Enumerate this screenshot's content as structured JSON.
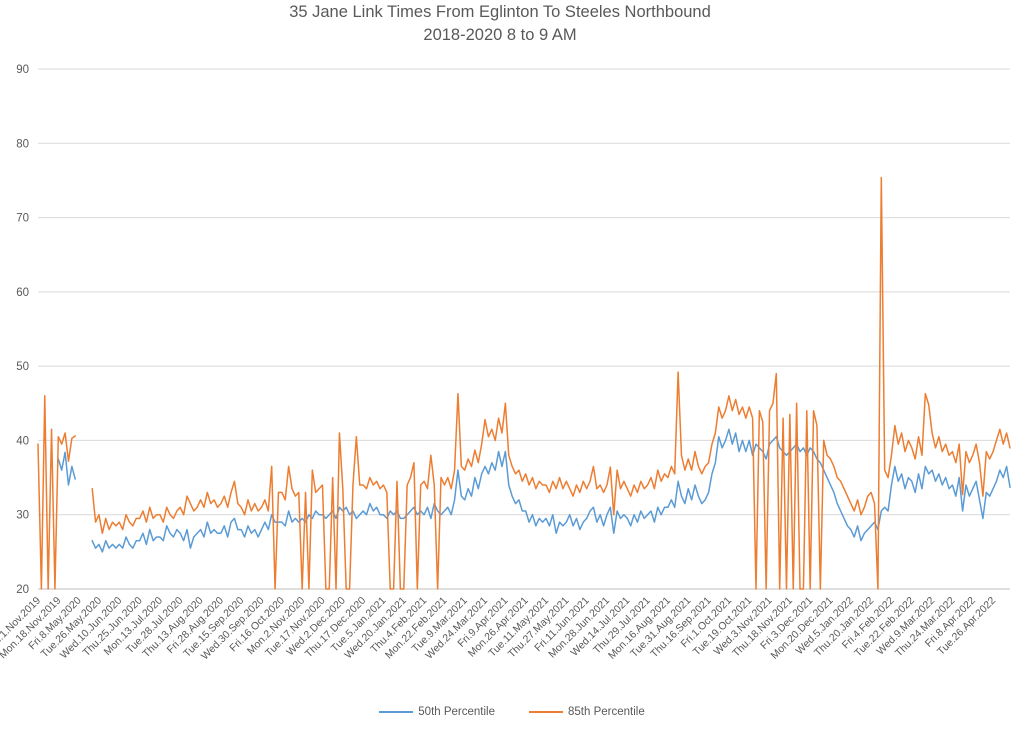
{
  "chart_data": {
    "type": "line",
    "title": "35 Jane Link Times From Eglinton To Steeles Northbound",
    "subtitle": "2018-2020 8 to 9 AM",
    "ylim": [
      20,
      90
    ],
    "y_ticks": [
      20,
      30,
      40,
      50,
      60,
      70,
      80,
      90
    ],
    "grid": "horizontal",
    "legend_position": "bottom",
    "label_every": 6,
    "x_tick_labels": [
      "Fri.1.Nov.2019",
      "Mon.18.Nov.2019",
      "Fri.8.May.2020",
      "Tue.26.May.2020",
      "Wed.10.Jun.2020",
      "Thu.25.Jun.2020",
      "Mon.13.Jul.2020",
      "Tue.28.Jul.2020",
      "Thu.13.Aug.2020",
      "Fri.28.Aug.2020",
      "Tue.15.Sep.2020",
      "Wed.30.Sep.2020",
      "Fri.16.Oct.2020",
      "Mon.2.Nov.2020",
      "Tue.17.Nov.2020",
      "Wed.2.Dec.2020",
      "Thu.17.Dec.2020",
      "Tue.5.Jan.2021",
      "Wed.20.Jan.2021",
      "Thu.4.Feb.2021",
      "Mon.22.Feb.2021",
      "Tue.9.Mar.2021",
      "Wed.24.Mar.2021",
      "Fri.9.Apr.2021",
      "Mon.26.Apr.2021",
      "Tue.11.May.2021",
      "Thu.27.May.2021",
      "Fri.11.Jun.2021",
      "Mon.28.Jun.2021",
      "Wed.14.Jul.2021",
      "Thu.29.Jul.2021",
      "Mon.16.Aug.2021",
      "Tue.31.Aug.2021",
      "Thu.16.Sep.2021",
      "Fri.1.Oct.2021",
      "Tue.19.Oct.2021",
      "Wed.3.Nov.2021",
      "Thu.18.Nov.2021",
      "Fri.3.Dec.2021",
      "Mon.20.Dec.2021",
      "Wed.5.Jan.2022",
      "Thu.20.Jan.2022",
      "Fri.4.Feb.2022",
      "Tue.22.Feb.2022",
      "Wed.9.Mar.2022",
      "Thu.24.Mar.2022",
      "Fri.8.Apr.2022",
      "Tue.26.Apr.2022"
    ],
    "series": [
      {
        "name": "50th Percentile",
        "color": "#5B9BD5",
        "values": [
          null,
          null,
          null,
          null,
          null,
          null,
          37.5,
          36,
          38.4,
          34,
          36.5,
          34.8,
          null,
          null,
          null,
          null,
          26.5,
          25.5,
          26,
          25,
          26.5,
          25.5,
          26,
          25.5,
          26,
          25.5,
          27,
          26,
          25.5,
          26.5,
          26.5,
          27.5,
          26,
          28,
          26.5,
          27,
          27,
          26.5,
          28.5,
          27.5,
          27,
          28,
          27.5,
          26.5,
          28,
          25.5,
          27,
          27.5,
          28,
          27,
          29,
          27.5,
          28,
          27.5,
          27.5,
          28.5,
          27,
          29,
          29.5,
          28,
          28,
          27,
          28.5,
          27.5,
          28,
          27,
          28,
          29,
          28,
          30,
          29,
          29,
          29,
          28.5,
          30.5,
          29,
          29.5,
          29,
          29.5,
          29,
          30,
          29.5,
          30.5,
          30,
          30,
          29.5,
          30,
          30.5,
          29.5,
          31,
          30.5,
          31,
          30,
          30.5,
          29.5,
          30,
          30.5,
          30,
          31.5,
          30.5,
          31,
          30,
          30,
          29.5,
          30.5,
          30,
          30.5,
          29.5,
          29.5,
          30,
          30.5,
          31,
          30,
          30.5,
          30,
          31,
          29.5,
          31.5,
          30.5,
          30,
          30.5,
          31,
          30,
          32,
          36,
          32.5,
          32,
          33.5,
          32.5,
          35,
          33.5,
          35.5,
          36.5,
          35.5,
          37,
          36,
          38.5,
          36.5,
          38.5,
          34,
          32.5,
          31.5,
          32,
          30.5,
          30.5,
          29,
          30,
          28.5,
          29.5,
          29,
          29.5,
          28.5,
          30,
          27.5,
          29,
          28.5,
          29,
          30,
          28.5,
          29.5,
          28,
          29,
          29.5,
          30.5,
          31,
          29,
          30,
          28.5,
          30,
          31,
          27.5,
          30.5,
          29.5,
          30,
          29.5,
          28.5,
          30,
          29,
          30.5,
          29.5,
          30,
          30.5,
          29,
          31,
          30,
          31,
          31,
          32,
          31,
          34.5,
          32.5,
          31.5,
          33.5,
          32,
          34,
          32.5,
          31.5,
          32,
          33,
          35.5,
          37,
          40.5,
          39,
          40,
          41.5,
          39.5,
          41,
          38.5,
          40,
          38.5,
          40,
          38,
          39.5,
          39,
          38.5,
          37.5,
          39.5,
          40,
          40.5,
          39,
          38.5,
          38,
          38.5,
          39,
          39.5,
          38.5,
          39,
          38,
          39,
          38.5,
          37.5,
          37,
          36,
          35,
          34,
          33,
          31.5,
          30.5,
          29.5,
          28.5,
          28,
          27,
          28.5,
          26.5,
          27.5,
          28,
          28.5,
          29,
          28,
          30.5,
          31,
          30.5,
          34,
          36.5,
          34.5,
          35.5,
          33.5,
          35,
          34.5,
          33,
          35.5,
          33.5,
          36.5,
          35.5,
          36,
          34.5,
          35.5,
          34,
          35,
          33.5,
          34,
          32.5,
          35,
          30.5,
          34,
          32.5,
          33.5,
          34.5,
          32,
          29.5,
          33,
          32.5,
          33.5,
          34.5,
          36,
          35,
          36.5,
          33.7
        ]
      },
      {
        "name": "85th Percentile",
        "color": "#ED7D31",
        "values": [
          39.5,
          0,
          46,
          0,
          41.5,
          0,
          40.5,
          39.5,
          41,
          37.2,
          40.3,
          40.6,
          null,
          null,
          null,
          null,
          33.5,
          29,
          30,
          27.5,
          29.5,
          28,
          29,
          28.5,
          29,
          28,
          30,
          29,
          28.5,
          29.5,
          29.5,
          30.5,
          29,
          31,
          29.5,
          30,
          30,
          29,
          31,
          30,
          29.5,
          30.5,
          31,
          30,
          32.5,
          31.5,
          30.5,
          31,
          32,
          31,
          33,
          31.5,
          32,
          31,
          31.5,
          32.5,
          31,
          33,
          34.5,
          31.5,
          31,
          30,
          32,
          30.5,
          31.5,
          30.5,
          31,
          32,
          30.5,
          36.5,
          0,
          33,
          33,
          32,
          36.5,
          33.5,
          32.5,
          33,
          0,
          33,
          0,
          36,
          33,
          33.5,
          34,
          0,
          0,
          35,
          0,
          41,
          33.5,
          0,
          0,
          34,
          40.5,
          34,
          34,
          33.5,
          35,
          34,
          34.5,
          33.5,
          34,
          33,
          0,
          0,
          34.5,
          0,
          0,
          34,
          35,
          37,
          0,
          34,
          34.5,
          33.5,
          38,
          34,
          0,
          35,
          34,
          35,
          33.5,
          36,
          46.3,
          36.5,
          36,
          37.5,
          36.5,
          38.7,
          37,
          39.5,
          42.8,
          40.5,
          41.5,
          40,
          43,
          41,
          45,
          38,
          36.5,
          35.5,
          36,
          34.5,
          35.5,
          34,
          35,
          33.5,
          34.5,
          34,
          34,
          33,
          34.5,
          33.5,
          35,
          33.5,
          34.5,
          33.5,
          32.5,
          34,
          33,
          34.5,
          33.5,
          34.5,
          36.5,
          33.5,
          34,
          33,
          34,
          36.4,
          30,
          36,
          33.5,
          34.5,
          33.5,
          32.5,
          34,
          33,
          34.5,
          33.5,
          34,
          35,
          33.5,
          36,
          34.5,
          35.5,
          35,
          36.5,
          35.5,
          49.2,
          38,
          36,
          37.5,
          36,
          38.5,
          36.5,
          35.5,
          36.5,
          37,
          39.5,
          41,
          44.5,
          43,
          44,
          46,
          44,
          45.5,
          43.5,
          44.5,
          43,
          44.5,
          43,
          0,
          44,
          42.5,
          0,
          44,
          45,
          49,
          0,
          43,
          0,
          43.5,
          0,
          45,
          0,
          0,
          44,
          0,
          44,
          42,
          0,
          40,
          38,
          37.5,
          36.5,
          35,
          34.5,
          33.5,
          32.5,
          31.5,
          30.5,
          32,
          30,
          31,
          32.5,
          33,
          31.5,
          0,
          75.4,
          36,
          35,
          38,
          42,
          39.5,
          41,
          38.5,
          40,
          39,
          37.5,
          40.5,
          38,
          46.3,
          44.8,
          41,
          39,
          40.5,
          38.5,
          39.5,
          38,
          38.5,
          37,
          39.5,
          32.7,
          38.5,
          37,
          38,
          39.5,
          37,
          32.5,
          38.5,
          37.5,
          38.5,
          40,
          41.5,
          39.5,
          41,
          39
        ]
      }
    ],
    "colors": {
      "grid": "#d9d9d9",
      "axis": "#bfbfbf",
      "text": "#595959"
    }
  }
}
